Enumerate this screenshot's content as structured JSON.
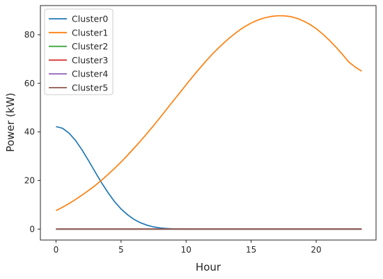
{
  "chart_data": {
    "type": "line",
    "xlabel": "Hour",
    "ylabel": "Power (kW)",
    "xlim": [
      -1.2,
      24.6
    ],
    "ylim": [
      -4.5,
      92
    ],
    "xticks": [
      0,
      5,
      10,
      15,
      20
    ],
    "yticks": [
      0,
      20,
      40,
      60,
      80
    ],
    "x": [
      0,
      0.5,
      1,
      1.5,
      2,
      2.5,
      3,
      3.5,
      4,
      4.5,
      5,
      5.5,
      6,
      6.5,
      7,
      7.5,
      8,
      8.5,
      9,
      9.5,
      10,
      10.5,
      11,
      11.5,
      12,
      12.5,
      13,
      13.5,
      14,
      14.5,
      15,
      15.5,
      16,
      16.5,
      17,
      17.5,
      18,
      18.5,
      19,
      19.5,
      20,
      20.5,
      21,
      21.5,
      22,
      22.5,
      23,
      23.5
    ],
    "series": [
      {
        "name": "Cluster0",
        "color": "#1f77b4",
        "values": [
          42.2,
          41.5,
          39.5,
          36.5,
          32.6,
          28.2,
          23.6,
          19.1,
          15.0,
          11.3,
          8.3,
          5.9,
          4.0,
          2.6,
          1.6,
          0.9,
          0.5,
          0.25,
          0.1,
          0.05,
          0.02,
          0,
          0,
          0,
          0,
          0,
          0,
          0,
          0,
          0,
          0,
          0,
          0,
          0,
          0,
          0,
          0,
          0,
          0,
          0,
          0,
          0,
          0,
          0,
          0,
          0,
          0,
          0
        ]
      },
      {
        "name": "Cluster1",
        "color": "#ff7f0e",
        "values": [
          7.6,
          9.0,
          10.5,
          12.2,
          14.0,
          15.9,
          17.9,
          20.1,
          22.5,
          25.0,
          27.6,
          30.4,
          33.3,
          36.3,
          39.4,
          42.6,
          45.9,
          49.3,
          52.7,
          56.0,
          59.4,
          62.7,
          65.9,
          69.0,
          71.9,
          74.6,
          77.1,
          79.4,
          81.5,
          83.3,
          84.8,
          86.0,
          86.9,
          87.5,
          87.8,
          87.8,
          87.5,
          86.8,
          85.7,
          84.3,
          82.5,
          80.3,
          77.8,
          75.0,
          72.0,
          68.8,
          66.7,
          65.0
        ]
      },
      {
        "name": "Cluster2",
        "color": "#2ca02c",
        "values": [
          0,
          0,
          0,
          0,
          0,
          0,
          0,
          0,
          0,
          0,
          0,
          0,
          0,
          0,
          0,
          0,
          0,
          0,
          0,
          0,
          0,
          0,
          0,
          0,
          0,
          0,
          0,
          0,
          0,
          0,
          0,
          0,
          0,
          0,
          0,
          0,
          0,
          0,
          0,
          0,
          0,
          0,
          0,
          0,
          0,
          0,
          0,
          0
        ]
      },
      {
        "name": "Cluster3",
        "color": "#d62728",
        "values": [
          0,
          0,
          0,
          0,
          0,
          0,
          0,
          0,
          0,
          0,
          0,
          0,
          0,
          0,
          0,
          0,
          0,
          0,
          0,
          0,
          0,
          0,
          0,
          0,
          0,
          0,
          0,
          0,
          0,
          0,
          0,
          0,
          0,
          0,
          0,
          0,
          0,
          0,
          0,
          0,
          0,
          0,
          0,
          0,
          0,
          0,
          0,
          0
        ]
      },
      {
        "name": "Cluster4",
        "color": "#9467bd",
        "values": [
          0,
          0,
          0,
          0,
          0,
          0,
          0,
          0,
          0,
          0,
          0,
          0,
          0,
          0,
          0,
          0,
          0,
          0,
          0,
          0,
          0,
          0,
          0,
          0,
          0,
          0,
          0,
          0,
          0,
          0,
          0,
          0,
          0,
          0,
          0,
          0,
          0,
          0,
          0,
          0,
          0,
          0,
          0,
          0,
          0,
          0,
          0,
          0
        ]
      },
      {
        "name": "Cluster5",
        "color": "#8c564b",
        "values": [
          0,
          0,
          0,
          0,
          0,
          0,
          0,
          0,
          0,
          0,
          0,
          0,
          0,
          0,
          0,
          0,
          0,
          0,
          0,
          0,
          0,
          0,
          0,
          0,
          0,
          0,
          0,
          0,
          0,
          0,
          0,
          0,
          0,
          0,
          0,
          0,
          0,
          0,
          0,
          0,
          0,
          0,
          0,
          0,
          0,
          0,
          0,
          0
        ]
      }
    ],
    "grid": false,
    "legend_position": "top-left"
  }
}
